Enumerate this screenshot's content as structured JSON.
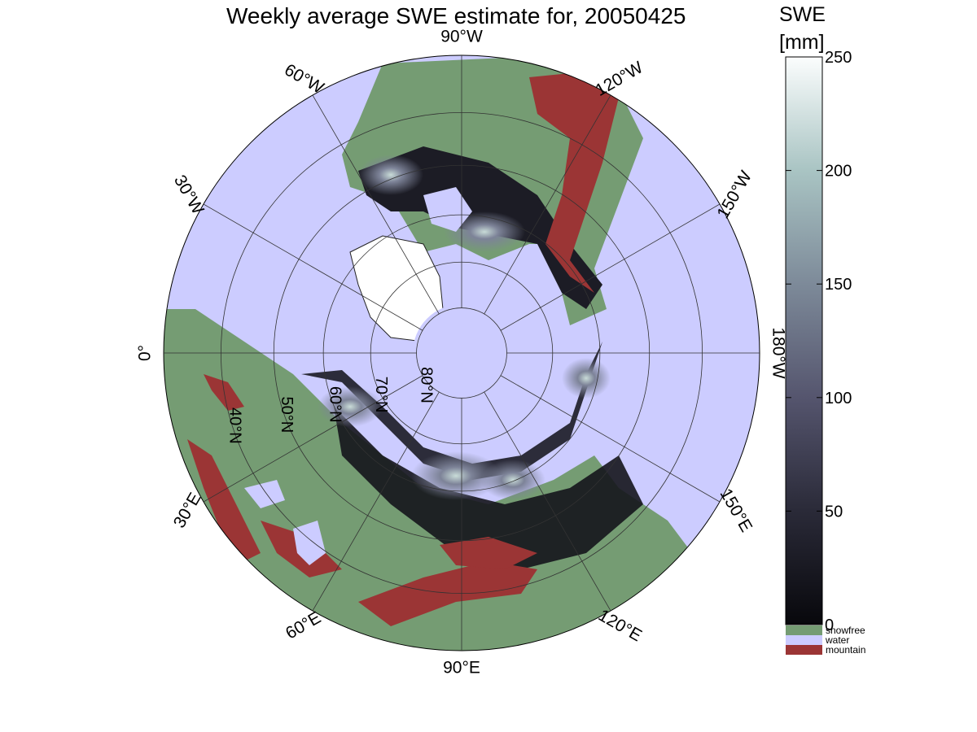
{
  "title": "Weekly average SWE estimate for, 20050425",
  "colorbar": {
    "title": "SWE",
    "units": "[mm]",
    "ticks": [
      "0",
      "50",
      "100",
      "150",
      "200",
      "250"
    ],
    "range": [
      0,
      250
    ],
    "categories": [
      {
        "label": "snowfree",
        "color": "#759c73"
      },
      {
        "label": "water",
        "color": "#ccccff"
      },
      {
        "label": "mountain",
        "color": "#9b3535"
      }
    ]
  },
  "map": {
    "projection": "north polar stereographic",
    "longitude_labels": [
      {
        "lon": 0,
        "label": "0°"
      },
      {
        "lon": 30,
        "label": "30°E"
      },
      {
        "lon": 60,
        "label": "60°E"
      },
      {
        "lon": 90,
        "label": "90°E"
      },
      {
        "lon": 120,
        "label": "120°E"
      },
      {
        "lon": 150,
        "label": "150°E"
      },
      {
        "lon": 180,
        "label": "180°W"
      },
      {
        "lon": -150,
        "label": "150°W"
      },
      {
        "lon": -120,
        "label": "120°W"
      },
      {
        "lon": -90,
        "label": "90°W"
      },
      {
        "lon": -60,
        "label": "60°W"
      },
      {
        "lon": -30,
        "label": "30°W"
      }
    ],
    "latitude_labels": [
      {
        "lat": 80,
        "label": "80°N"
      },
      {
        "lat": 70,
        "label": "70°N"
      },
      {
        "lat": 60,
        "label": "60°N"
      },
      {
        "lat": 50,
        "label": "50°N"
      },
      {
        "lat": 40,
        "label": "40°N"
      }
    ]
  },
  "colors": {
    "water": "#ccccff",
    "snowfree": "#759c73",
    "mountain": "#9b3535",
    "snow_low": "#0a0a10",
    "snow_high": "#dfece9"
  }
}
